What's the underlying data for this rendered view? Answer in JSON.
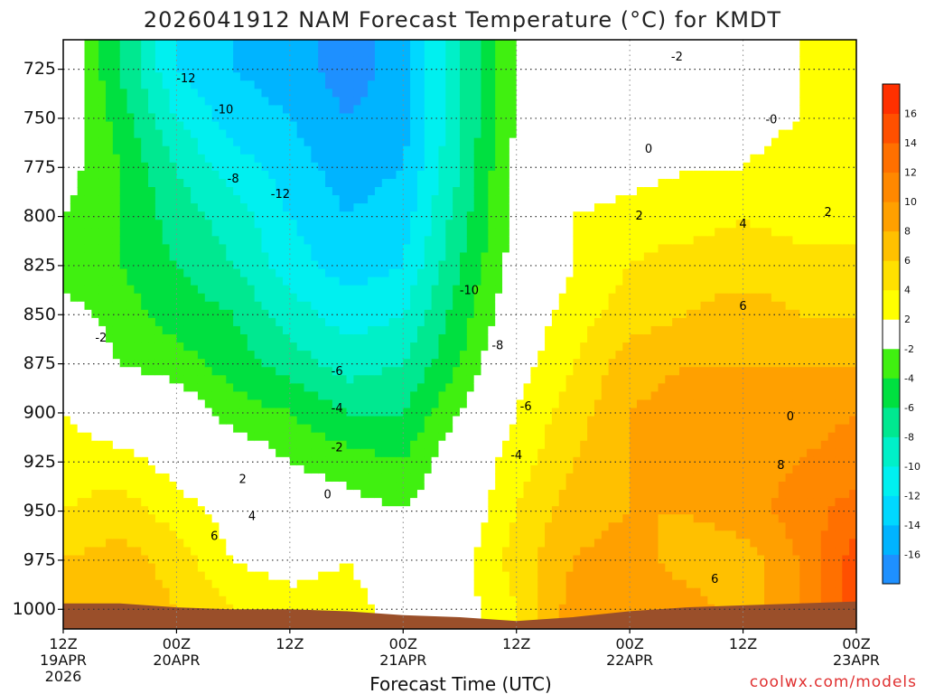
{
  "title": "2026041912 NAM Forecast Temperature (°C) for KMDT",
  "xlabel": "Forecast Time (UTC)",
  "credit": "coolwx.com/models",
  "chart_data": {
    "type": "heatmap",
    "title": "2026041912 NAM Forecast Temperature (°C) for KMDT",
    "xlabel": "Forecast Time (UTC)",
    "ylabel": "",
    "units": "°C",
    "x_hours": [
      0,
      6,
      12,
      18,
      24,
      30,
      36,
      42,
      48,
      54,
      60,
      66,
      72,
      78,
      84
    ],
    "x_ticks": [
      {
        "hour": 0,
        "lines": [
          "12Z",
          "19APR",
          "2026"
        ]
      },
      {
        "hour": 12,
        "lines": [
          "00Z",
          "20APR"
        ]
      },
      {
        "hour": 24,
        "lines": [
          "12Z"
        ]
      },
      {
        "hour": 36,
        "lines": [
          "00Z",
          "21APR"
        ]
      },
      {
        "hour": 48,
        "lines": [
          "12Z"
        ]
      },
      {
        "hour": 60,
        "lines": [
          "00Z",
          "22APR"
        ]
      },
      {
        "hour": 72,
        "lines": [
          "12Z"
        ]
      },
      {
        "hour": 84,
        "lines": [
          "00Z",
          "23APR"
        ]
      }
    ],
    "y_ticks": [
      "725",
      "750",
      "775",
      "800",
      "825",
      "850",
      "875",
      "900",
      "925",
      "950",
      "975",
      "1000"
    ],
    "y_levels_hpa": [
      725,
      750,
      775,
      800,
      825,
      850,
      875,
      900,
      925,
      950,
      975,
      1000
    ],
    "ylim": [
      1010,
      710
    ],
    "xlim": [
      0,
      84
    ],
    "grid": true,
    "temperature_grid": [
      [
        0,
        -6,
        -12,
        -14,
        -15,
        -17,
        -15,
        -8,
        -2,
        0,
        0,
        1,
        1,
        2,
        3
      ],
      [
        0,
        -5,
        -10,
        -13,
        -14,
        -16,
        -15,
        -8,
        -2,
        0,
        0,
        1,
        1,
        2,
        3
      ],
      [
        -1,
        -4,
        -8,
        -11,
        -13,
        -15,
        -14,
        -8,
        -1,
        0,
        1,
        2,
        2,
        3,
        2
      ],
      [
        -2,
        -4,
        -7,
        -9,
        -12,
        -14,
        -13,
        -7,
        -1,
        2,
        3,
        3,
        4,
        3,
        3
      ],
      [
        -3,
        -4,
        -6,
        -8,
        -11,
        -13,
        -12,
        -6,
        -1,
        2,
        4,
        5,
        5,
        5,
        5
      ],
      [
        -1,
        -3,
        -5,
        -6,
        -9,
        -11,
        -10,
        -5,
        0,
        3,
        5,
        6,
        7,
        6,
        6
      ],
      [
        1,
        -2,
        -3,
        -5,
        -7,
        -9,
        -8,
        -4,
        1,
        4,
        7,
        8,
        8,
        8,
        8
      ],
      [
        2,
        0,
        0,
        -3,
        -4,
        -6,
        -6,
        -2,
        2,
        5,
        8,
        9,
        9,
        9,
        10
      ],
      [
        3,
        3,
        1,
        0,
        -2,
        -3,
        -4,
        0,
        3,
        6,
        8,
        9,
        9,
        10,
        11
      ],
      [
        4,
        5,
        3,
        1,
        0,
        -1,
        -2,
        0,
        4,
        7,
        8,
        8,
        9,
        11,
        13
      ],
      [
        6,
        7,
        5,
        2,
        1,
        2,
        0,
        1,
        5,
        8,
        9,
        7,
        7,
        10,
        15
      ],
      [
        7,
        8,
        6,
        4,
        3,
        3,
        1,
        1,
        4,
        9,
        10,
        9,
        7,
        10,
        16
      ]
    ],
    "colorbar": {
      "levels": [
        -18,
        -16,
        -14,
        -12,
        -10,
        -8,
        -6,
        -4,
        -2,
        2,
        4,
        6,
        8,
        10,
        12,
        14,
        16,
        18
      ],
      "labels": [
        "-16",
        "-14",
        "-12",
        "-10",
        "-8",
        "-6",
        "-4",
        "-2",
        "2",
        "4",
        "6",
        "8",
        "10",
        "12",
        "14",
        "16"
      ],
      "colors": [
        "#1e90ff",
        "#00b4ff",
        "#00d8ff",
        "#00f0f0",
        "#00f0c8",
        "#00e890",
        "#00e040",
        "#40f010",
        "#ffffff",
        "#ffff00",
        "#ffe000",
        "#ffc000",
        "#ffa000",
        "#ff8800",
        "#ff7000",
        "#ff5000",
        "#ff3000"
      ]
    },
    "contour_labels": [
      {
        "text": "-12",
        "hour": 13,
        "hpa": 730
      },
      {
        "text": "-10",
        "hour": 17,
        "hpa": 746
      },
      {
        "text": "-8",
        "hour": 18,
        "hpa": 781
      },
      {
        "text": "-12",
        "hour": 23,
        "hpa": 789
      },
      {
        "text": "-10",
        "hour": 43,
        "hpa": 838
      },
      {
        "text": "-8",
        "hour": 46,
        "hpa": 866
      },
      {
        "text": "-6",
        "hour": 29,
        "hpa": 879
      },
      {
        "text": "-6",
        "hour": 49,
        "hpa": 897
      },
      {
        "text": "-4",
        "hour": 29,
        "hpa": 898
      },
      {
        "text": "-4",
        "hour": 48,
        "hpa": 922
      },
      {
        "text": "-2",
        "hour": 29,
        "hpa": 918
      },
      {
        "text": "-2",
        "hour": 4,
        "hpa": 862
      },
      {
        "text": "0",
        "hour": 28,
        "hpa": 942
      },
      {
        "text": "2",
        "hour": 19,
        "hpa": 934
      },
      {
        "text": "4",
        "hour": 20,
        "hpa": 953
      },
      {
        "text": "6",
        "hour": 16,
        "hpa": 963
      },
      {
        "text": "0",
        "hour": 62,
        "hpa": 766
      },
      {
        "text": "-2",
        "hour": 65,
        "hpa": 719
      },
      {
        "text": "-0",
        "hour": 75,
        "hpa": 751
      },
      {
        "text": "2",
        "hour": 61,
        "hpa": 800
      },
      {
        "text": "4",
        "hour": 72,
        "hpa": 804
      },
      {
        "text": "2",
        "hour": 81,
        "hpa": 798
      },
      {
        "text": "6",
        "hour": 72,
        "hpa": 846
      },
      {
        "text": "0",
        "hour": 77,
        "hpa": 902
      },
      {
        "text": "8",
        "hour": 76,
        "hpa": 927
      },
      {
        "text": "6",
        "hour": 69,
        "hpa": 985
      }
    ],
    "ground_hpa": [
      997,
      997,
      999,
      1000,
      1000,
      1001,
      1003,
      1004,
      1006,
      1004,
      1001,
      999,
      998,
      997,
      996
    ]
  }
}
